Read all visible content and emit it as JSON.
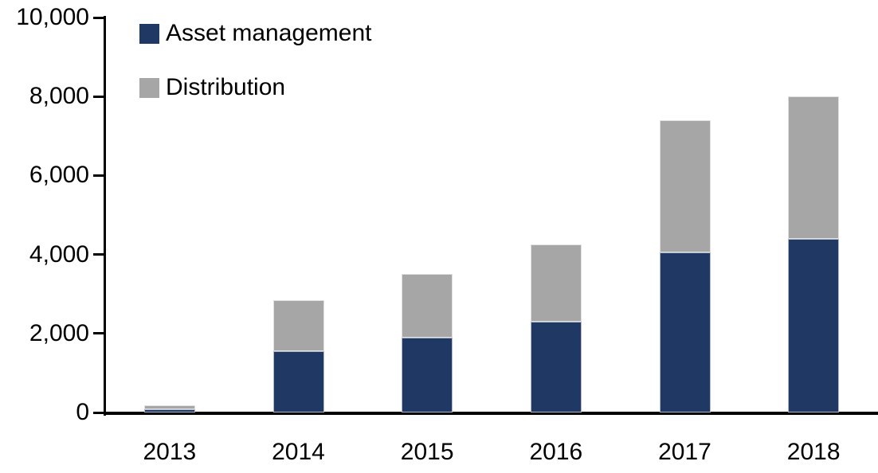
{
  "chart_data": {
    "type": "bar",
    "stacked": true,
    "title": "",
    "xlabel": "",
    "ylabel": "",
    "categories": [
      "2013",
      "2014",
      "2015",
      "2016",
      "2017",
      "2018"
    ],
    "series": [
      {
        "name": "Asset management",
        "color": "#1F3864",
        "values": [
          90,
          1550,
          1900,
          2300,
          4050,
          4400
        ]
      },
      {
        "name": "Distribution",
        "color": "#A6A6A6",
        "values": [
          100,
          1300,
          1600,
          1950,
          3350,
          3600
        ]
      }
    ],
    "totals": [
      190,
      2850,
      3500,
      4250,
      7400,
      8000
    ],
    "ylim": [
      0,
      10000
    ],
    "ytick_step": 2000,
    "yticks": [
      0,
      2000,
      4000,
      6000,
      8000,
      10000
    ],
    "ytick_labels": [
      "0",
      "2,000",
      "4,000",
      "6,000",
      "8,000",
      "10,000"
    ],
    "grid": false,
    "legend_position": "top-left-inside"
  },
  "colors": {
    "axis": "#000000",
    "text": "#000000",
    "background": "#FFFFFF"
  }
}
